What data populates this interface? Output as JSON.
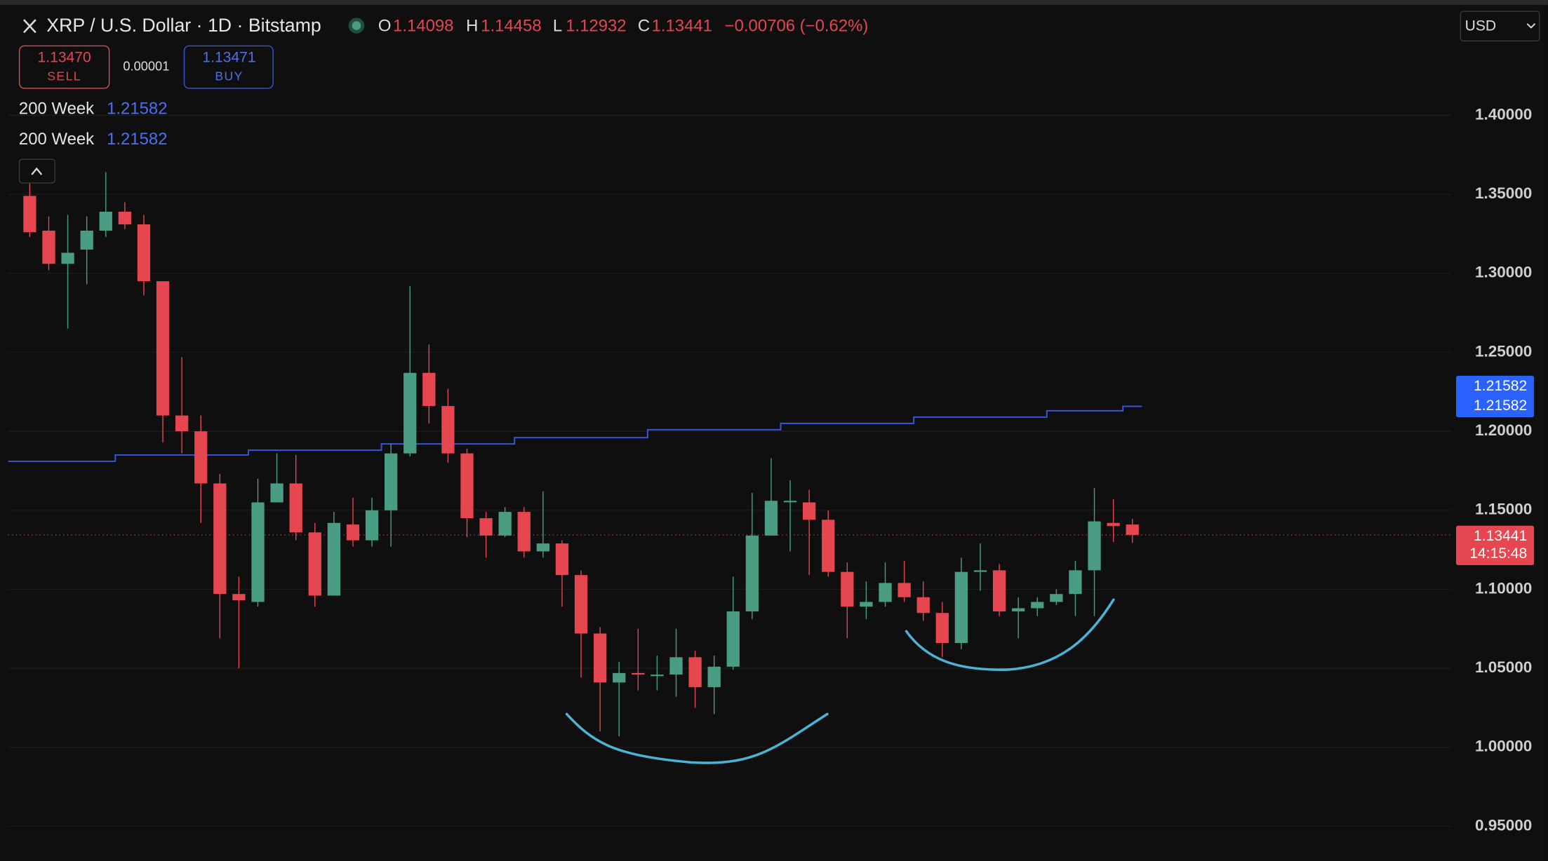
{
  "header": {
    "title": "XRP / U.S. Dollar · 1D · Bitstamp",
    "ohlc": [
      {
        "key": "O",
        "value": "1.14098"
      },
      {
        "key": "H",
        "value": "1.14458"
      },
      {
        "key": "L",
        "value": "1.12932"
      },
      {
        "key": "C",
        "value": "1.13441"
      }
    ],
    "change": "−0.00706 (−0.62%)",
    "sell_price": "1.13470",
    "sell_label": "SELL",
    "spread": "0.00001",
    "buy_price": "1.13471",
    "buy_label": "BUY",
    "currency": "USD"
  },
  "indicators": [
    {
      "name": "200 Week",
      "value": "1.21582"
    },
    {
      "name": "200 Week",
      "value": "1.21582"
    }
  ],
  "price_scale_labels": {
    "ma": [
      "1.21582",
      "1.21582"
    ],
    "last": "1.13441",
    "countdown": "14:15:48"
  },
  "chart_data": {
    "type": "candlestick",
    "up_color": "#4a9c85",
    "down_color": "#e5464f",
    "open": [
      1.349,
      1.327,
      1.306,
      1.315,
      1.327,
      1.339,
      1.331,
      1.295,
      1.21,
      1.2,
      1.167,
      1.097,
      1.092,
      1.155,
      1.167,
      1.136,
      1.096,
      1.141,
      1.131,
      1.15,
      1.186,
      1.237,
      1.216,
      1.186,
      1.145,
      1.134,
      1.149,
      1.124,
      1.129,
      1.109,
      1.072,
      1.041,
      1.047,
      1.045,
      1.046,
      1.057,
      1.038,
      1.051,
      1.086,
      1.134,
      1.156,
      1.155,
      1.144,
      1.111,
      1.089,
      1.092,
      1.104,
      1.095,
      1.085,
      1.066,
      1.111,
      1.112,
      1.086,
      1.088,
      1.092,
      1.097,
      1.112,
      1.142,
      1.14098
    ],
    "high": [
      1.358,
      1.336,
      1.337,
      1.336,
      1.364,
      1.345,
      1.337,
      1.295,
      1.247,
      1.21,
      1.173,
      1.108,
      1.17,
      1.186,
      1.185,
      1.142,
      1.149,
      1.158,
      1.158,
      1.192,
      1.292,
      1.255,
      1.227,
      1.189,
      1.149,
      1.152,
      1.152,
      1.162,
      1.131,
      1.112,
      1.076,
      1.054,
      1.075,
      1.058,
      1.075,
      1.061,
      1.058,
      1.108,
      1.161,
      1.183,
      1.169,
      1.163,
      1.15,
      1.117,
      1.105,
      1.117,
      1.118,
      1.105,
      1.092,
      1.12,
      1.129,
      1.116,
      1.095,
      1.095,
      1.1,
      1.118,
      1.164,
      1.157,
      1.14458
    ],
    "low": [
      1.323,
      1.302,
      1.265,
      1.293,
      1.323,
      1.328,
      1.286,
      1.193,
      1.186,
      1.142,
      1.069,
      1.05,
      1.089,
      1.155,
      1.131,
      1.089,
      1.096,
      1.127,
      1.127,
      1.127,
      1.184,
      1.205,
      1.18,
      1.133,
      1.12,
      1.133,
      1.12,
      1.12,
      1.089,
      1.044,
      1.01,
      1.007,
      1.036,
      1.036,
      1.032,
      1.025,
      1.021,
      1.049,
      1.081,
      1.134,
      1.124,
      1.109,
      1.108,
      1.069,
      1.081,
      1.089,
      1.092,
      1.08,
      1.057,
      1.062,
      1.099,
      1.083,
      1.069,
      1.083,
      1.09,
      1.083,
      1.083,
      1.13,
      1.12932
    ],
    "close": [
      1.326,
      1.306,
      1.313,
      1.327,
      1.339,
      1.331,
      1.295,
      1.21,
      1.2,
      1.167,
      1.097,
      1.093,
      1.155,
      1.167,
      1.136,
      1.096,
      1.142,
      1.131,
      1.15,
      1.186,
      1.237,
      1.216,
      1.186,
      1.145,
      1.134,
      1.149,
      1.124,
      1.129,
      1.109,
      1.072,
      1.041,
      1.047,
      1.046,
      1.046,
      1.057,
      1.038,
      1.051,
      1.086,
      1.134,
      1.156,
      1.156,
      1.144,
      1.111,
      1.089,
      1.092,
      1.104,
      1.095,
      1.085,
      1.066,
      1.111,
      1.112,
      1.086,
      1.088,
      1.092,
      1.097,
      1.112,
      1.143,
      1.14,
      1.13441
    ],
    "series": [
      {
        "name": "200 Week",
        "color": "#3556d8",
        "values": [
          1.181,
          1.181,
          1.181,
          1.181,
          1.181,
          1.185,
          1.185,
          1.185,
          1.185,
          1.185,
          1.185,
          1.185,
          1.188,
          1.188,
          1.188,
          1.188,
          1.188,
          1.188,
          1.188,
          1.192,
          1.192,
          1.192,
          1.192,
          1.192,
          1.192,
          1.192,
          1.196,
          1.196,
          1.196,
          1.196,
          1.196,
          1.196,
          1.196,
          1.201,
          1.201,
          1.201,
          1.201,
          1.201,
          1.201,
          1.201,
          1.205,
          1.205,
          1.205,
          1.205,
          1.205,
          1.205,
          1.205,
          1.209,
          1.209,
          1.209,
          1.209,
          1.209,
          1.209,
          1.209,
          1.213,
          1.213,
          1.213,
          1.213,
          1.21582
        ]
      }
    ],
    "ylim": [
      0.928,
      1.473
    ],
    "yticks": [
      {
        "value": 0.95,
        "label": "0.95000"
      },
      {
        "value": 1.0,
        "label": "1.00000"
      },
      {
        "value": 1.05,
        "label": "1.05000"
      },
      {
        "value": 1.1,
        "label": "1.10000"
      },
      {
        "value": 1.15,
        "label": "1.15000"
      },
      {
        "value": 1.2,
        "label": "1.20000"
      },
      {
        "value": 1.25,
        "label": "1.25000"
      },
      {
        "value": 1.3,
        "label": "1.30000"
      },
      {
        "value": 1.35,
        "label": "1.35000"
      },
      {
        "value": 1.4,
        "label": "1.40000"
      }
    ],
    "grid": true
  }
}
